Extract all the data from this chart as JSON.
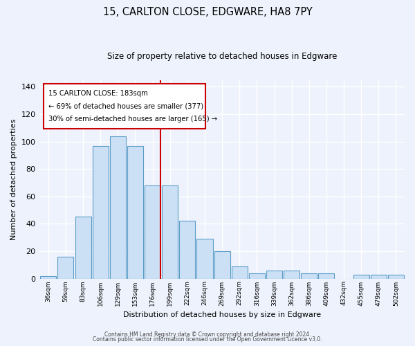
{
  "title1": "15, CARLTON CLOSE, EDGWARE, HA8 7PY",
  "title2": "Size of property relative to detached houses in Edgware",
  "xlabel": "Distribution of detached houses by size in Edgware",
  "ylabel": "Number of detached properties",
  "bar_labels": [
    "36sqm",
    "59sqm",
    "83sqm",
    "106sqm",
    "129sqm",
    "153sqm",
    "176sqm",
    "199sqm",
    "222sqm",
    "246sqm",
    "269sqm",
    "292sqm",
    "316sqm",
    "339sqm",
    "362sqm",
    "386sqm",
    "409sqm",
    "432sqm",
    "455sqm",
    "479sqm",
    "502sqm"
  ],
  "bar_values": [
    2,
    16,
    45,
    97,
    104,
    97,
    68,
    68,
    42,
    29,
    20,
    9,
    4,
    6,
    6,
    4,
    4,
    0,
    3,
    3,
    3
  ],
  "ylim": [
    0,
    145
  ],
  "yticks": [
    0,
    20,
    40,
    60,
    80,
    100,
    120,
    140
  ],
  "bar_color": "#cce0f5",
  "bar_edge_color": "#5b9dc8",
  "marker_color": "#cc0000",
  "annotation_line1": "15 CARLTON CLOSE: 183sqm",
  "annotation_line2": "← 69% of detached houses are smaller (377)",
  "annotation_line3": "30% of semi-detached houses are larger (165) →",
  "background_color": "#eef2fc",
  "footer1": "Contains HM Land Registry data © Crown copyright and database right 2024.",
  "footer2": "Contains public sector information licensed under the Open Government Licence v3.0."
}
